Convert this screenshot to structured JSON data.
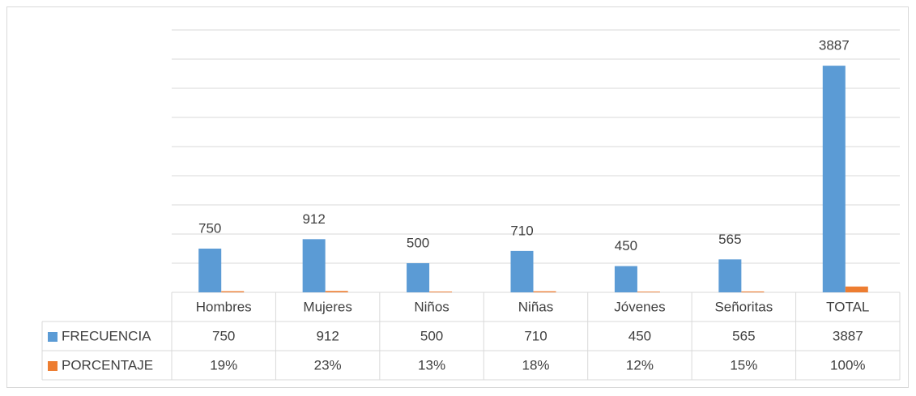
{
  "chart_data": {
    "type": "bar",
    "categories": [
      "Hombres",
      "Mujeres",
      "Niños",
      "Niñas",
      "Jóvenes",
      "Señoritas",
      "TOTAL"
    ],
    "series": [
      {
        "name": "FRECUENCIA",
        "color": "#5b9bd5",
        "values": [
          750,
          912,
          500,
          710,
          450,
          565,
          3887
        ]
      },
      {
        "name": "PORCENTAJE",
        "color": "#ed7d31",
        "values": [
          19,
          23,
          13,
          18,
          12,
          15,
          100
        ],
        "value_labels": [
          "19%",
          "23%",
          "13%",
          "18%",
          "12%",
          "15%",
          "100%"
        ]
      }
    ],
    "ylim": [
      0,
      4500
    ],
    "yticks": [
      0,
      500,
      1000,
      1500,
      2000,
      2500,
      3000,
      3500,
      4000,
      4500
    ],
    "grid": true
  }
}
